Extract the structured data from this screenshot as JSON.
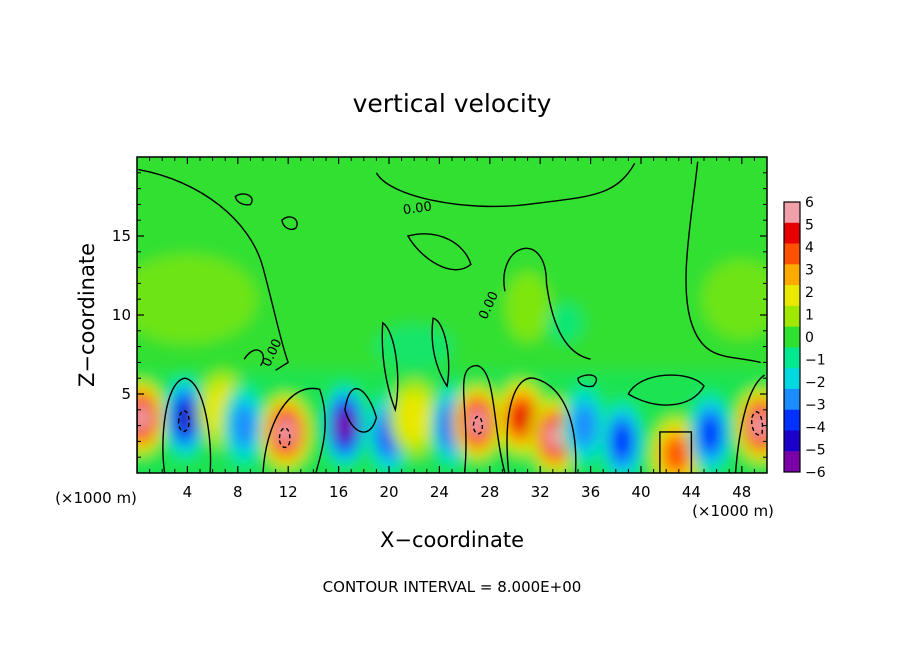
{
  "chart_data": {
    "type": "heatmap",
    "title": "vertical velocity",
    "xlabel": "X−coordinate",
    "ylabel": "Z−coordinate",
    "x_unit_label": "(×1000 m)",
    "x_unit_label_right": "(×1000 m)",
    "xlim": [
      0,
      50
    ],
    "ylim": [
      0,
      20
    ],
    "x_ticks": [
      4,
      8,
      12,
      16,
      20,
      24,
      28,
      32,
      36,
      40,
      44,
      48
    ],
    "x_tick_labels": [
      "4",
      "8",
      "12",
      "16",
      "20",
      "24",
      "28",
      "32",
      "36",
      "40",
      "44",
      "48"
    ],
    "y_ticks": [
      5,
      10,
      15
    ],
    "y_tick_labels": [
      "5",
      "10",
      "15"
    ],
    "colorbar": {
      "min": -6,
      "max": 6,
      "tick_values": [
        6,
        5,
        4,
        3,
        2,
        1,
        0,
        -1,
        -2,
        -3,
        -4,
        -5,
        -6
      ],
      "tick_labels": [
        "6",
        "5",
        "4",
        "3",
        "2",
        "1",
        "0",
        "−1",
        "−2",
        "−3",
        "−4",
        "−5",
        "−6"
      ],
      "colors": [
        "#7a00a8",
        "#1a00c8",
        "#0030ff",
        "#1a8cff",
        "#00d8e0",
        "#00e890",
        "#30e030",
        "#a0e800",
        "#e8e800",
        "#ffaa00",
        "#ff5000",
        "#e80000",
        "#f0a0a8"
      ]
    },
    "contour_labels": [
      {
        "text": "0.00",
        "x": 22.3,
        "z": 16.5
      },
      {
        "text": "0.00",
        "x": 11.0,
        "z": 7.5
      },
      {
        "text": "0.00",
        "x": 28.2,
        "z": 10.5
      }
    ],
    "features": [
      {
        "sign": "up",
        "x": 0.3,
        "z": 3.5,
        "w": 6
      },
      {
        "sign": "down",
        "x": 3.8,
        "z": 3.5,
        "w": -5
      },
      {
        "sign": "up",
        "x": 6.8,
        "z": 4.0,
        "w": 2
      },
      {
        "sign": "down",
        "x": 8.5,
        "z": 3.0,
        "w": -3
      },
      {
        "sign": "up",
        "x": 11.8,
        "z": 2.6,
        "w": 6
      },
      {
        "sign": "down",
        "x": 16.5,
        "z": 3.0,
        "w": -6
      },
      {
        "sign": "down",
        "x": 20.0,
        "z": 2.5,
        "w": -4
      },
      {
        "sign": "up",
        "x": 22.0,
        "z": 3.5,
        "w": 2
      },
      {
        "sign": "down",
        "x": 25.0,
        "z": 3.0,
        "w": -4
      },
      {
        "sign": "up",
        "x": 27.0,
        "z": 3.2,
        "w": 6
      },
      {
        "sign": "up",
        "x": 30.5,
        "z": 3.5,
        "w": 5
      },
      {
        "sign": "up",
        "x": 33.2,
        "z": 2.3,
        "w": 6
      },
      {
        "sign": "down",
        "x": 35.5,
        "z": 3.0,
        "w": -3
      },
      {
        "sign": "down",
        "x": 38.5,
        "z": 2.0,
        "w": -4
      },
      {
        "sign": "up",
        "x": 42.8,
        "z": 1.2,
        "w": 4
      },
      {
        "sign": "down",
        "x": 45.5,
        "z": 2.5,
        "w": -4
      },
      {
        "sign": "up",
        "x": 49.5,
        "z": 3.0,
        "w": 6
      }
    ]
  },
  "footer": {
    "contour_interval": "CONTOUR INTERVAL = 8.000E+00"
  }
}
